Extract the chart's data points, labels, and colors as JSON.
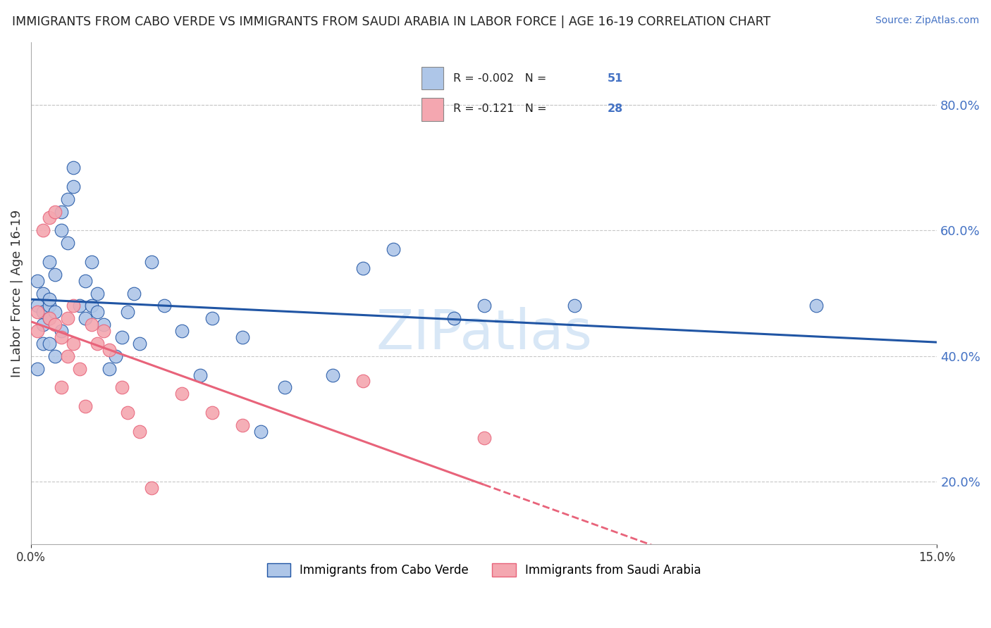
{
  "title": "IMMIGRANTS FROM CABO VERDE VS IMMIGRANTS FROM SAUDI ARABIA IN LABOR FORCE | AGE 16-19 CORRELATION CHART",
  "source_text": "Source: ZipAtlas.com",
  "ylabel": "In Labor Force | Age 16-19",
  "xlim": [
    0.0,
    0.15
  ],
  "ylim": [
    0.1,
    0.9
  ],
  "yticks": [
    0.2,
    0.4,
    0.6,
    0.8
  ],
  "watermark": "ZIPatlas",
  "legend_R1": "-0.002",
  "legend_N1": "51",
  "legend_R2": "-0.121",
  "legend_N2": "28",
  "label1": "Immigrants from Cabo Verde",
  "label2": "Immigrants from Saudi Arabia",
  "color1": "#aec6e8",
  "color2": "#f4a7b0",
  "line_color1": "#2055a4",
  "line_color2": "#e8637a",
  "cabo_verde_x": [
    0.001,
    0.001,
    0.001,
    0.002,
    0.002,
    0.002,
    0.002,
    0.003,
    0.003,
    0.003,
    0.003,
    0.003,
    0.004,
    0.004,
    0.004,
    0.005,
    0.005,
    0.005,
    0.006,
    0.006,
    0.007,
    0.007,
    0.008,
    0.009,
    0.009,
    0.01,
    0.01,
    0.011,
    0.011,
    0.012,
    0.013,
    0.014,
    0.015,
    0.016,
    0.017,
    0.018,
    0.02,
    0.022,
    0.025,
    0.028,
    0.03,
    0.035,
    0.038,
    0.042,
    0.05,
    0.055,
    0.06,
    0.07,
    0.075,
    0.09,
    0.13
  ],
  "cabo_verde_y": [
    0.48,
    0.52,
    0.38,
    0.5,
    0.45,
    0.42,
    0.47,
    0.48,
    0.55,
    0.42,
    0.49,
    0.46,
    0.53,
    0.4,
    0.47,
    0.6,
    0.63,
    0.44,
    0.65,
    0.58,
    0.67,
    0.7,
    0.48,
    0.52,
    0.46,
    0.48,
    0.55,
    0.47,
    0.5,
    0.45,
    0.38,
    0.4,
    0.43,
    0.47,
    0.5,
    0.42,
    0.55,
    0.48,
    0.44,
    0.37,
    0.46,
    0.43,
    0.28,
    0.35,
    0.37,
    0.54,
    0.57,
    0.46,
    0.48,
    0.48,
    0.48
  ],
  "saudi_x": [
    0.001,
    0.001,
    0.002,
    0.003,
    0.003,
    0.004,
    0.004,
    0.005,
    0.005,
    0.006,
    0.006,
    0.007,
    0.007,
    0.008,
    0.009,
    0.01,
    0.011,
    0.012,
    0.013,
    0.015,
    0.016,
    0.018,
    0.02,
    0.025,
    0.03,
    0.035,
    0.055,
    0.075
  ],
  "saudi_y": [
    0.47,
    0.44,
    0.6,
    0.46,
    0.62,
    0.45,
    0.63,
    0.43,
    0.35,
    0.4,
    0.46,
    0.42,
    0.48,
    0.38,
    0.32,
    0.45,
    0.42,
    0.44,
    0.41,
    0.35,
    0.31,
    0.28,
    0.19,
    0.34,
    0.31,
    0.29,
    0.36,
    0.27
  ],
  "background_color": "#ffffff",
  "grid_color": "#c8c8c8"
}
